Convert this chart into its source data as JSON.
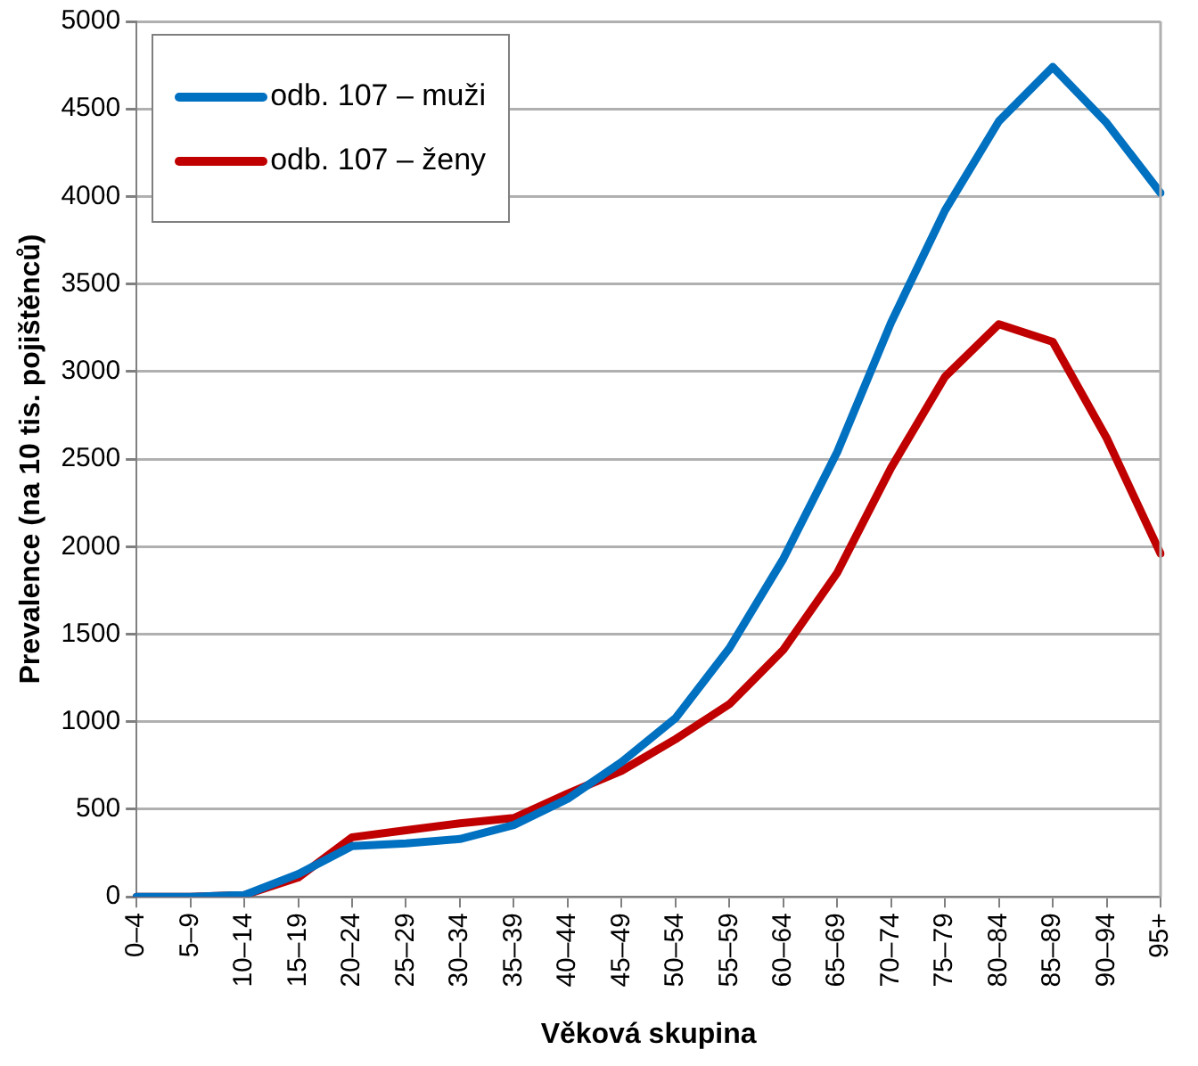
{
  "chart_data": {
    "type": "line",
    "xlabel": "Věková skupina",
    "ylabel": "Prevalence (na 10 tis. pojištěnců)",
    "categories": [
      "0–4",
      "5–9",
      "10–14",
      "15–19",
      "20–24",
      "25–29",
      "30–34",
      "35–39",
      "40–44",
      "45–49",
      "50–54",
      "55–59",
      "60–64",
      "65–69",
      "70–74",
      "75–79",
      "80–84",
      "85–89",
      "90–94",
      "95+"
    ],
    "series": [
      {
        "name": "odb. 107 – muži",
        "color": "#0070c0",
        "values": [
          0,
          0,
          10,
          130,
          290,
          305,
          330,
          410,
          560,
          770,
          1020,
          1420,
          1930,
          2540,
          3280,
          3920,
          4430,
          4740,
          4420,
          4020
        ]
      },
      {
        "name": "odb. 107 – ženy",
        "color": "#c00000",
        "values": [
          0,
          0,
          10,
          110,
          340,
          380,
          420,
          450,
          590,
          720,
          900,
          1100,
          1410,
          1850,
          2450,
          2970,
          3270,
          3170,
          2620,
          1960
        ]
      }
    ],
    "ylim": [
      0,
      5000
    ],
    "yticks": [
      0,
      500,
      1000,
      1500,
      2000,
      2500,
      3000,
      3500,
      4000,
      4500,
      5000
    ],
    "grid": "y",
    "legend": "top left",
    "marker": "none",
    "line_style": "solid"
  }
}
